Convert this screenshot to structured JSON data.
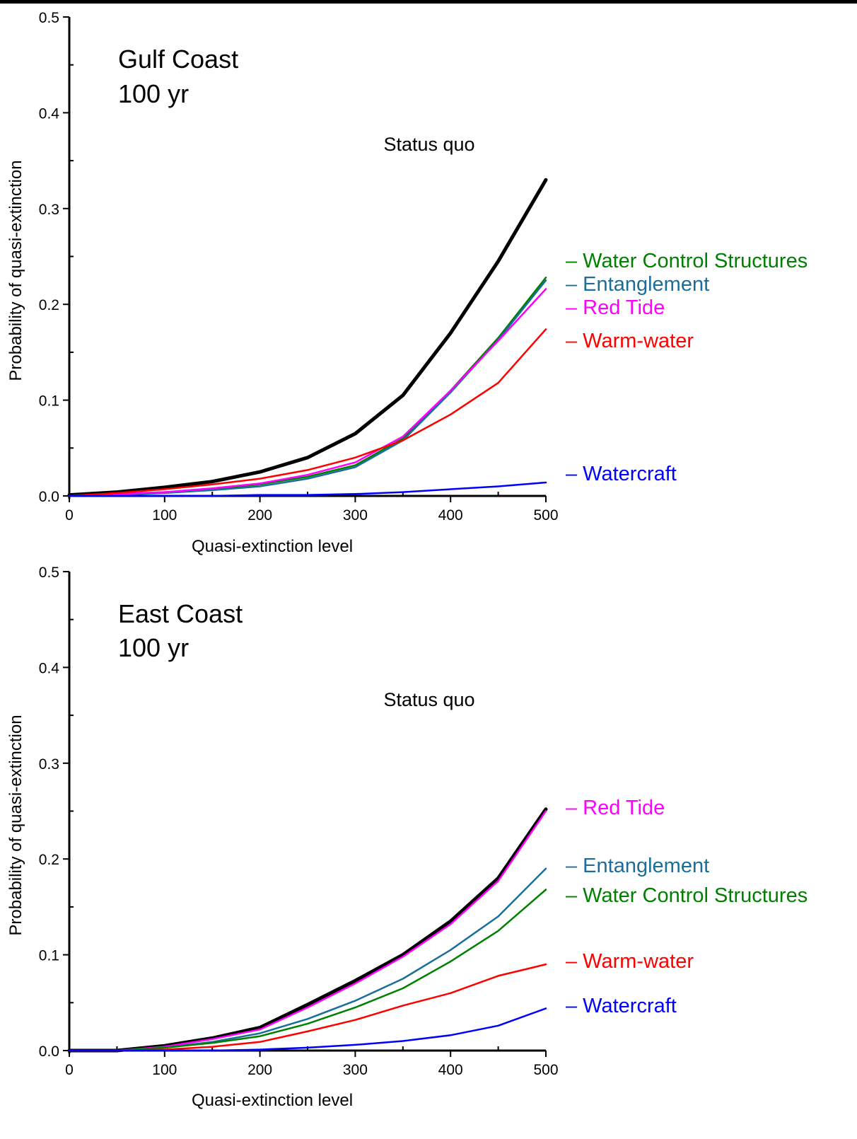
{
  "chart_data": [
    {
      "type": "line",
      "title": "Gulf Coast",
      "subtitle": "100 yr",
      "annotation": "Status quo",
      "xlabel": "Quasi-extinction level",
      "ylabel": "Probability of quasi-extinction",
      "xlim": [
        0,
        500
      ],
      "ylim": [
        0,
        0.5
      ],
      "xticks": [
        0,
        100,
        200,
        300,
        400,
        500
      ],
      "xtick_labels": [
        "0",
        "100",
        "200",
        "300",
        "400",
        "500"
      ],
      "yticks": [
        0,
        0.1,
        0.2,
        0.3,
        0.4,
        0.5
      ],
      "ytick_labels": [
        "0.0",
        "0.1",
        "0.2",
        "0.3",
        "0.4",
        "0.5"
      ],
      "grid": false,
      "legend_placement": "right",
      "series": [
        {
          "name": "",
          "color": "#000000",
          "x": [
            0,
            50,
            100,
            150,
            200,
            250,
            300,
            350,
            400,
            450,
            500
          ],
          "y": [
            0.001,
            0.004,
            0.009,
            0.015,
            0.025,
            0.04,
            0.065,
            0.105,
            0.17,
            0.245,
            0.33
          ]
        },
        {
          "name": "Water Control Structures",
          "color": "#008000",
          "x": [
            0,
            50,
            100,
            150,
            200,
            250,
            300,
            350,
            400,
            450,
            500
          ],
          "y": [
            0.0,
            0.002,
            0.004,
            0.007,
            0.012,
            0.02,
            0.032,
            0.06,
            0.11,
            0.165,
            0.228
          ]
        },
        {
          "name": "Entanglement",
          "color": "#1a6e99",
          "x": [
            0,
            50,
            100,
            150,
            200,
            250,
            300,
            350,
            400,
            450,
            500
          ],
          "y": [
            0.0,
            0.001,
            0.003,
            0.006,
            0.01,
            0.018,
            0.03,
            0.058,
            0.108,
            0.163,
            0.225
          ]
        },
        {
          "name": "Red Tide",
          "color": "#ff00ff",
          "x": [
            0,
            50,
            100,
            150,
            200,
            250,
            300,
            350,
            400,
            450,
            500
          ],
          "y": [
            0.0,
            0.002,
            0.004,
            0.008,
            0.013,
            0.022,
            0.035,
            0.062,
            0.11,
            0.162,
            0.216
          ]
        },
        {
          "name": "Warm-water",
          "color": "#ff0000",
          "x": [
            0,
            50,
            100,
            150,
            200,
            250,
            300,
            350,
            400,
            450,
            500
          ],
          "y": [
            0.0,
            0.003,
            0.007,
            0.012,
            0.018,
            0.027,
            0.04,
            0.058,
            0.085,
            0.118,
            0.174
          ]
        },
        {
          "name": "Watercraft",
          "color": "#0000ff",
          "x": [
            0,
            50,
            100,
            150,
            200,
            250,
            300,
            350,
            400,
            450,
            500
          ],
          "y": [
            0.0,
            0.0,
            0.0,
            0.0,
            0.001,
            0.001,
            0.002,
            0.004,
            0.007,
            0.01,
            0.014
          ]
        }
      ]
    },
    {
      "type": "line",
      "title": "East Coast",
      "subtitle": "100 yr",
      "annotation": "Status quo",
      "xlabel": "Quasi-extinction level",
      "ylabel": "Probability of quasi-extinction",
      "xlim": [
        0,
        500
      ],
      "ylim": [
        0,
        0.5
      ],
      "xticks": [
        0,
        100,
        200,
        300,
        400,
        500
      ],
      "xtick_labels": [
        "0",
        "100",
        "200",
        "300",
        "400",
        "500"
      ],
      "yticks": [
        0,
        0.1,
        0.2,
        0.3,
        0.4,
        0.5
      ],
      "ytick_labels": [
        "0.0",
        "0.1",
        "0.2",
        "0.3",
        "0.4",
        "0.5"
      ],
      "grid": false,
      "legend_placement": "right",
      "series": [
        {
          "name": "",
          "color": "#000000",
          "x": [
            0,
            50,
            100,
            150,
            200,
            250,
            300,
            350,
            400,
            450,
            500
          ],
          "y": [
            0.0,
            0.0,
            0.005,
            0.013,
            0.024,
            0.048,
            0.073,
            0.1,
            0.135,
            0.18,
            0.252
          ]
        },
        {
          "name": "Red Tide",
          "color": "#ff00ff",
          "x": [
            0,
            50,
            100,
            150,
            200,
            250,
            300,
            350,
            400,
            450,
            500
          ],
          "y": [
            0.0,
            0.0,
            0.004,
            0.012,
            0.022,
            0.045,
            0.07,
            0.098,
            0.132,
            0.177,
            0.25
          ]
        },
        {
          "name": "Entanglement",
          "color": "#1a6e99",
          "x": [
            0,
            50,
            100,
            150,
            200,
            250,
            300,
            350,
            400,
            450,
            500
          ],
          "y": [
            0.0,
            0.0,
            0.003,
            0.009,
            0.018,
            0.033,
            0.052,
            0.075,
            0.105,
            0.14,
            0.19
          ]
        },
        {
          "name": "Water Control Structures",
          "color": "#008000",
          "x": [
            0,
            50,
            100,
            150,
            200,
            250,
            300,
            350,
            400,
            450,
            500
          ],
          "y": [
            0.0,
            0.0,
            0.003,
            0.008,
            0.015,
            0.028,
            0.045,
            0.065,
            0.093,
            0.125,
            0.168
          ]
        },
        {
          "name": "Warm-water",
          "color": "#ff0000",
          "x": [
            0,
            50,
            100,
            150,
            200,
            250,
            300,
            350,
            400,
            450,
            500
          ],
          "y": [
            0.0,
            0.0,
            0.001,
            0.004,
            0.009,
            0.02,
            0.032,
            0.047,
            0.06,
            0.078,
            0.09
          ]
        },
        {
          "name": "Watercraft",
          "color": "#0000ff",
          "x": [
            0,
            50,
            100,
            150,
            200,
            250,
            300,
            350,
            400,
            450,
            500
          ],
          "y": [
            0.0,
            0.0,
            0.0,
            0.0,
            0.001,
            0.003,
            0.006,
            0.01,
            0.016,
            0.026,
            0.044
          ]
        }
      ],
      "legend_order": [
        "Red Tide",
        "Entanglement",
        "Water Control Structures",
        "Warm-water",
        "Watercraft"
      ]
    }
  ],
  "legend_dash": "–"
}
